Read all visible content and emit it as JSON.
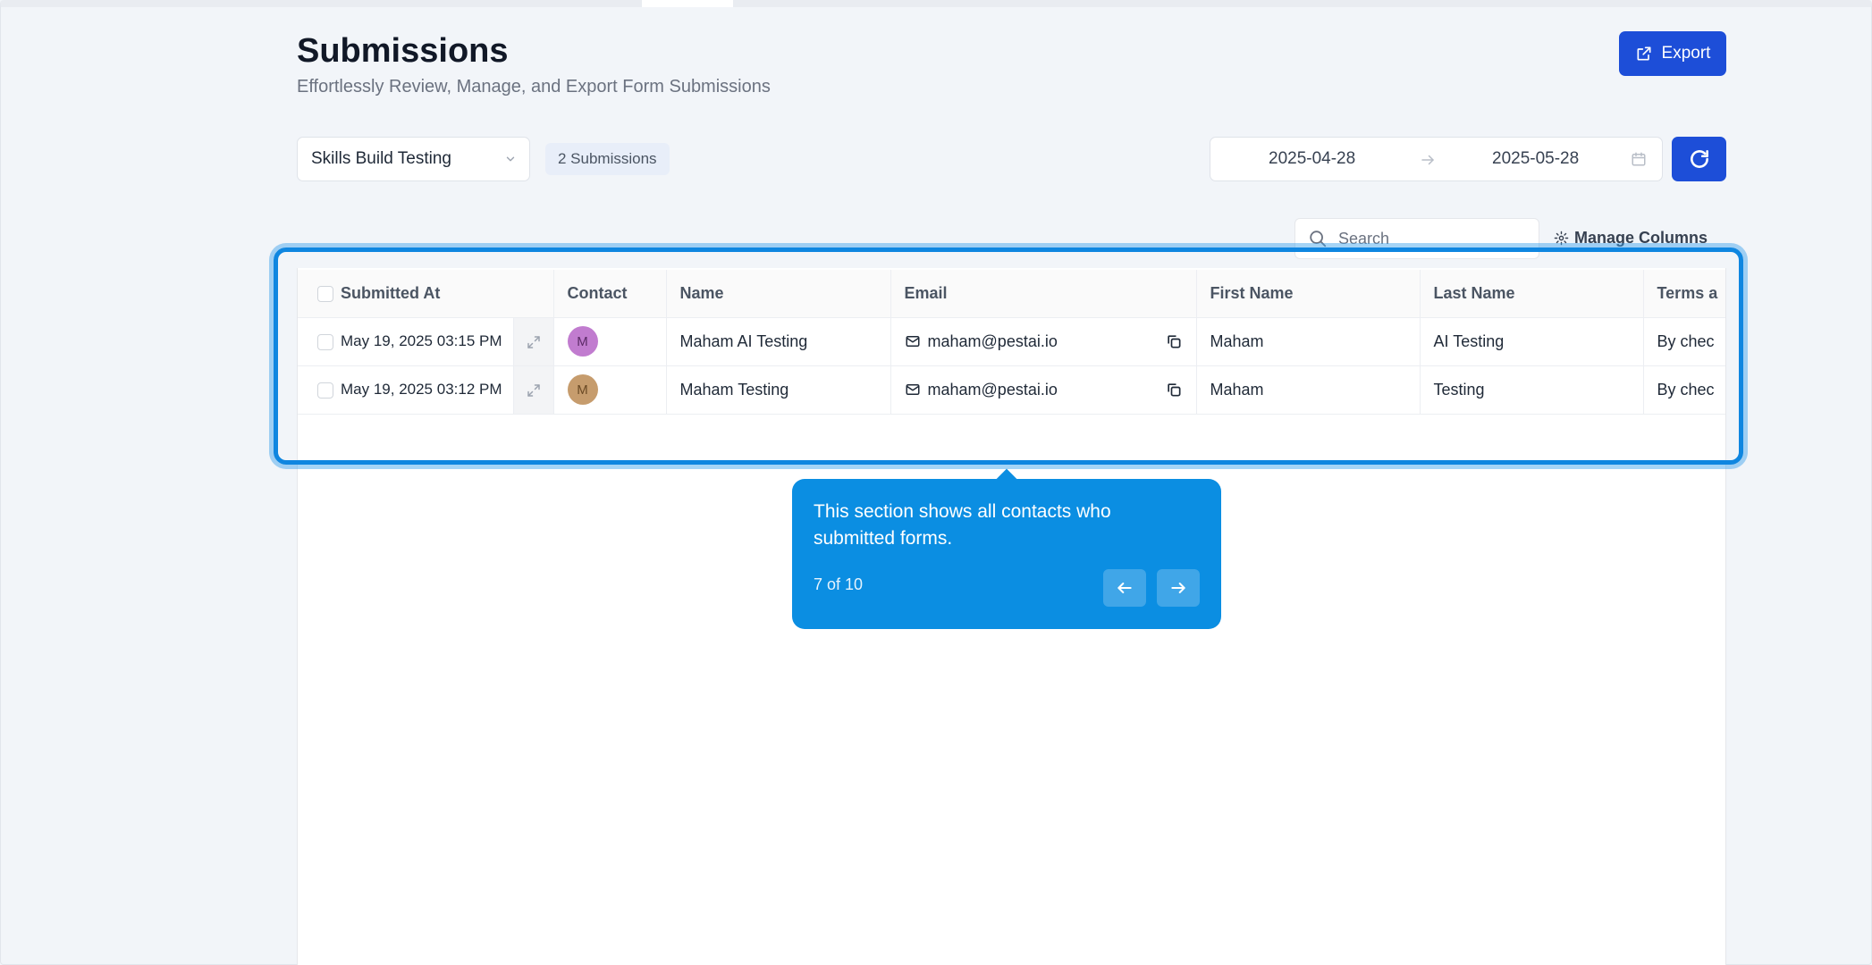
{
  "header": {
    "title": "Submissions",
    "subtitle": "Effortlessly Review, Manage, and Export Form Submissions",
    "export_label": "Export"
  },
  "filters": {
    "form_selected": "Skills Build Testing",
    "submission_count": "2 Submissions",
    "date_start": "2025-04-28",
    "date_end": "2025-05-28"
  },
  "toolbar": {
    "search_placeholder": "Search",
    "manage_columns_label": "Manage Columns"
  },
  "table": {
    "columns": [
      "Submitted At",
      "Contact",
      "Name",
      "Email",
      "First Name",
      "Last Name",
      "Terms a"
    ],
    "rows": [
      {
        "submitted_at": "May 19, 2025 03:15 PM",
        "avatar_initial": "M",
        "avatar_color": "#c17ccf",
        "name": "Maham AI Testing",
        "email": "maham@pestai.io",
        "first_name": "Maham",
        "last_name": "AI Testing",
        "terms": "By chec"
      },
      {
        "submitted_at": "May 19, 2025 03:12 PM",
        "avatar_initial": "M",
        "avatar_color": "#c69c6d",
        "name": "Maham Testing",
        "email": "maham@pestai.io",
        "first_name": "Maham",
        "last_name": "Testing",
        "terms": "By chec"
      }
    ]
  },
  "tour": {
    "text": "This section shows all contacts who submitted forms.",
    "step": "7 of 10"
  },
  "colors": {
    "primary": "#1d4ed8",
    "tour_bg": "#0b8ee2",
    "highlight": "#0f86e0"
  }
}
